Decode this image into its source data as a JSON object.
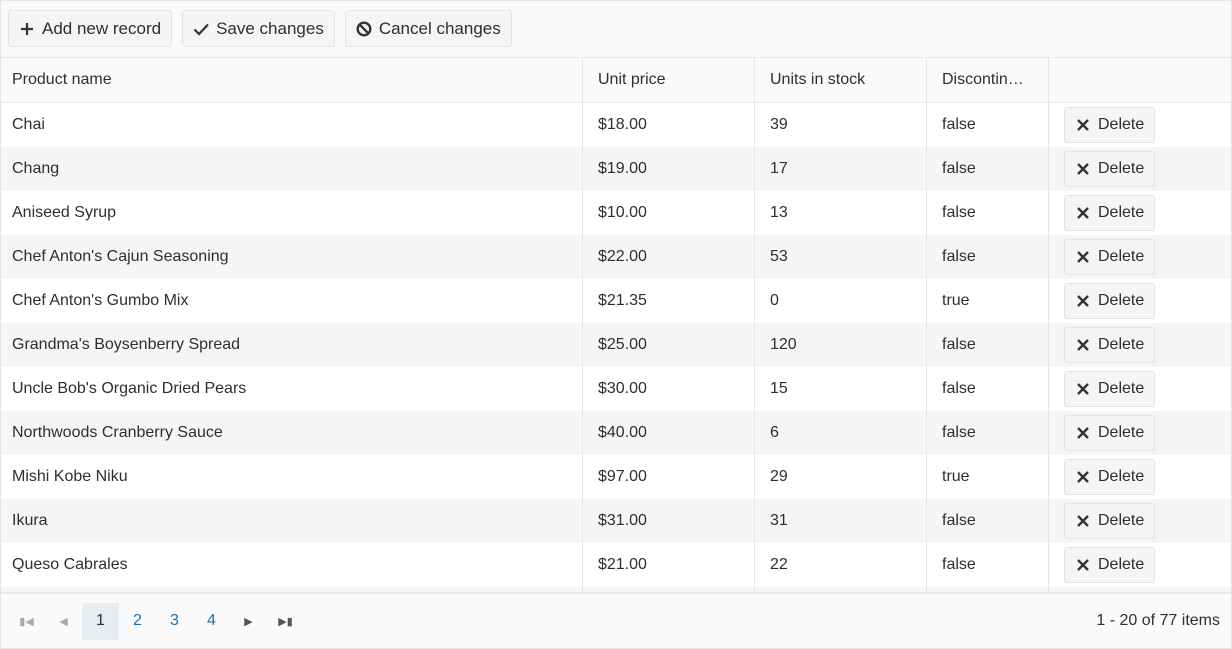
{
  "toolbar": {
    "add_label": "Add new record",
    "save_label": "Save changes",
    "cancel_label": "Cancel changes"
  },
  "columns": [
    "Product name",
    "Unit price",
    "Units in stock",
    "Discontin…",
    ""
  ],
  "delete_label": "Delete",
  "rows": [
    {
      "name": "Chai",
      "price": "$18.00",
      "stock": "39",
      "disc": "false"
    },
    {
      "name": "Chang",
      "price": "$19.00",
      "stock": "17",
      "disc": "false"
    },
    {
      "name": "Aniseed Syrup",
      "price": "$10.00",
      "stock": "13",
      "disc": "false"
    },
    {
      "name": "Chef Anton's Cajun Seasoning",
      "price": "$22.00",
      "stock": "53",
      "disc": "false"
    },
    {
      "name": "Chef Anton's Gumbo Mix",
      "price": "$21.35",
      "stock": "0",
      "disc": "true"
    },
    {
      "name": "Grandma's Boysenberry Spread",
      "price": "$25.00",
      "stock": "120",
      "disc": "false"
    },
    {
      "name": "Uncle Bob's Organic Dried Pears",
      "price": "$30.00",
      "stock": "15",
      "disc": "false"
    },
    {
      "name": "Northwoods Cranberry Sauce",
      "price": "$40.00",
      "stock": "6",
      "disc": "false"
    },
    {
      "name": "Mishi Kobe Niku",
      "price": "$97.00",
      "stock": "29",
      "disc": "true"
    },
    {
      "name": "Ikura",
      "price": "$31.00",
      "stock": "31",
      "disc": "false"
    },
    {
      "name": "Queso Cabrales",
      "price": "$21.00",
      "stock": "22",
      "disc": "false"
    }
  ],
  "pager": {
    "pages": [
      "1",
      "2",
      "3",
      "4"
    ],
    "current": "1",
    "info": "1 - 20 of 77 items"
  }
}
